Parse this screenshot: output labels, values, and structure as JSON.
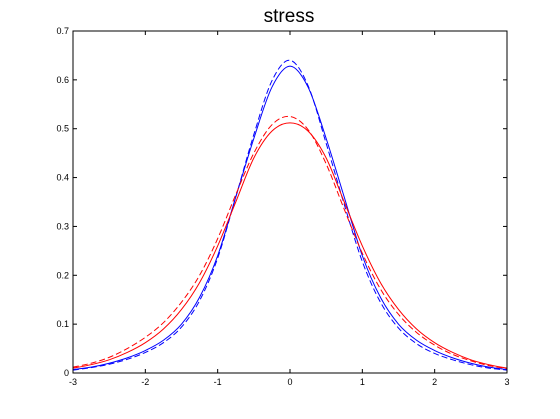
{
  "chart_data": {
    "type": "line",
    "title": "stress",
    "xlabel": "",
    "ylabel": "",
    "xlim": [
      -3,
      3
    ],
    "ylim": [
      0,
      0.7
    ],
    "grid": false,
    "legend": "none",
    "xticks": [
      "-3",
      "-2",
      "-1",
      "0",
      "1",
      "2",
      "3"
    ],
    "yticks": [
      "0",
      "0.1",
      "0.2",
      "0.3",
      "0.4",
      "0.5",
      "0.6",
      "0.7"
    ],
    "x": [
      -3.0,
      -2.75,
      -2.5,
      -2.25,
      -2.0,
      -1.75,
      -1.5,
      -1.25,
      -1.0,
      -0.75,
      -0.5,
      -0.25,
      0.0,
      0.25,
      0.5,
      0.75,
      1.0,
      1.25,
      1.5,
      1.75,
      2.0,
      2.25,
      2.5,
      2.75,
      3.0
    ],
    "series": [
      {
        "color": "#0000ff",
        "dash": "solid",
        "values": [
          0.007,
          0.012,
          0.02,
          0.031,
          0.046,
          0.067,
          0.1,
          0.155,
          0.24,
          0.36,
          0.48,
          0.585,
          0.628,
          0.585,
          0.48,
          0.36,
          0.24,
          0.155,
          0.1,
          0.067,
          0.046,
          0.031,
          0.02,
          0.012,
          0.007
        ]
      },
      {
        "color": "#0000ff",
        "dash": "dashed",
        "values": [
          0.006,
          0.011,
          0.018,
          0.028,
          0.042,
          0.062,
          0.094,
          0.148,
          0.235,
          0.36,
          0.488,
          0.598,
          0.64,
          0.588,
          0.47,
          0.345,
          0.228,
          0.145,
          0.092,
          0.06,
          0.04,
          0.027,
          0.017,
          0.01,
          0.006
        ]
      },
      {
        "color": "#ff0000",
        "dash": "solid",
        "values": [
          0.01,
          0.017,
          0.027,
          0.042,
          0.062,
          0.09,
          0.13,
          0.185,
          0.26,
          0.35,
          0.44,
          0.495,
          0.512,
          0.495,
          0.44,
          0.35,
          0.26,
          0.185,
          0.13,
          0.09,
          0.062,
          0.042,
          0.027,
          0.017,
          0.01
        ]
      },
      {
        "color": "#ff0000",
        "dash": "dashed",
        "values": [
          0.012,
          0.02,
          0.032,
          0.05,
          0.073,
          0.103,
          0.145,
          0.2,
          0.275,
          0.365,
          0.45,
          0.508,
          0.525,
          0.498,
          0.428,
          0.335,
          0.245,
          0.172,
          0.12,
          0.083,
          0.057,
          0.038,
          0.025,
          0.015,
          0.009
        ]
      }
    ]
  }
}
